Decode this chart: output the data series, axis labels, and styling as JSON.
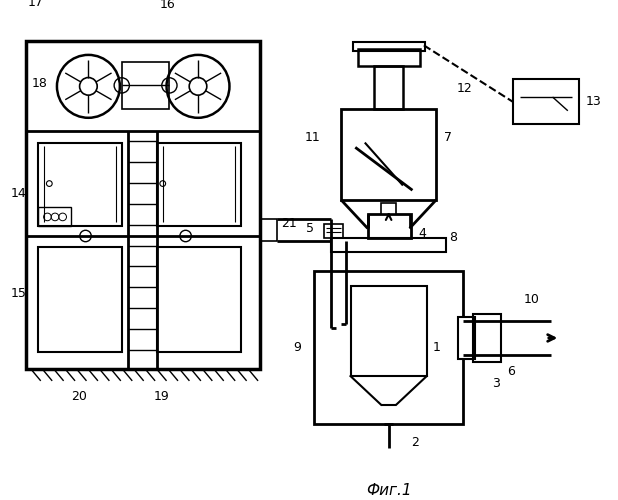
{
  "bg_color": "#ffffff",
  "line_color": "#000000",
  "fig_label": "Фиг.1"
}
